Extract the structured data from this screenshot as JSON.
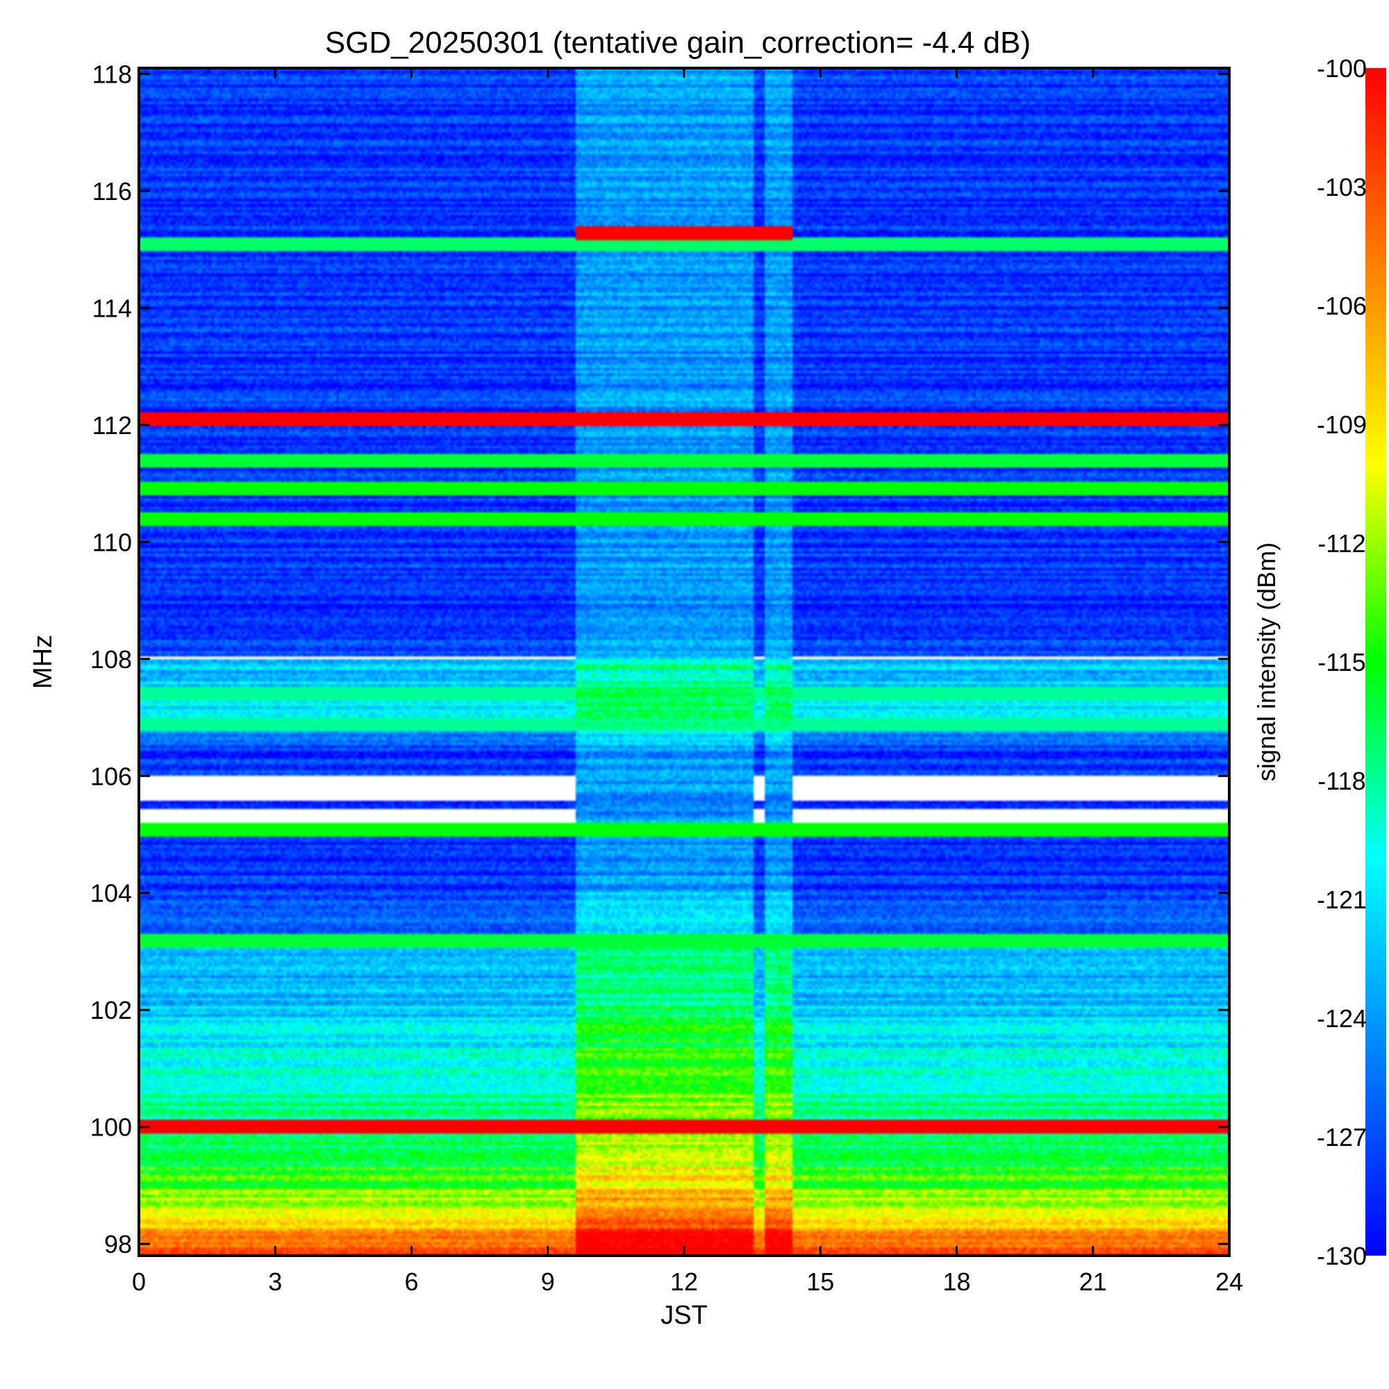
{
  "chart_data": {
    "type": "heatmap",
    "title": "SGD_20250301 (tentative gain_correction= -4.4 dB)",
    "xlabel": "JST",
    "ylabel": "MHz",
    "colorbar_label": "signal intensity (dBm)",
    "xlim": [
      0,
      24
    ],
    "ylim": [
      97.8,
      118.1
    ],
    "clim": [
      -130,
      -100
    ],
    "x_ticks": [
      0,
      3,
      6,
      9,
      12,
      15,
      18,
      21,
      24
    ],
    "x_tick_labels": [
      "0",
      "3",
      "6",
      "9",
      "12",
      "15",
      "18",
      "21",
      "24"
    ],
    "y_ticks": [
      98,
      100,
      102,
      104,
      106,
      108,
      110,
      112,
      114,
      116,
      118
    ],
    "y_tick_labels": [
      "98",
      "100",
      "102",
      "104",
      "106",
      "108",
      "110",
      "112",
      "114",
      "116",
      "118"
    ],
    "colorbar_ticks": [
      -100,
      -103,
      -106,
      -109,
      -112,
      -115,
      -118,
      -121,
      -124,
      -127,
      -130
    ],
    "colorbar_tick_labels": [
      "-100",
      "-103",
      "-106",
      "-109",
      "-112",
      "-115",
      "-118",
      "-121",
      "-124",
      "-127",
      "-130"
    ],
    "colormap": [
      "#0000ff",
      "#0080ff",
      "#00ffff",
      "#00ff00",
      "#ffff00",
      "#ff8000",
      "#ff0000"
    ],
    "background_profile": [
      {
        "mhz": 97.8,
        "dbm": -101
      },
      {
        "mhz": 98.0,
        "dbm": -104
      },
      {
        "mhz": 98.5,
        "dbm": -110
      },
      {
        "mhz": 99.0,
        "dbm": -114
      },
      {
        "mhz": 100.0,
        "dbm": -117
      },
      {
        "mhz": 101.0,
        "dbm": -119
      },
      {
        "mhz": 102.0,
        "dbm": -122
      },
      {
        "mhz": 103.0,
        "dbm": -124
      },
      {
        "mhz": 104.0,
        "dbm": -128
      },
      {
        "mhz": 106.5,
        "dbm": -128
      },
      {
        "mhz": 107.0,
        "dbm": -121
      },
      {
        "mhz": 108.0,
        "dbm": -123
      },
      {
        "mhz": 108.1,
        "dbm": -128
      },
      {
        "mhz": 118.1,
        "dbm": -128
      }
    ],
    "daytime_block": {
      "start": 9.6,
      "end": 14.4,
      "gap_start": 13.55,
      "gap_end": 13.75,
      "enhancement_db": 4
    },
    "strong_stations": [
      {
        "mhz": 100.0,
        "dbm": -100
      },
      {
        "mhz": 112.1,
        "dbm": -100
      },
      {
        "mhz": 115.3,
        "dbm": -100,
        "start": 9.6,
        "end": 14.4
      }
    ],
    "steady_lines": [
      {
        "mhz": 115.1,
        "dbm": -117
      },
      {
        "mhz": 111.4,
        "dbm": -116
      },
      {
        "mhz": 110.9,
        "dbm": -115
      },
      {
        "mhz": 110.4,
        "dbm": -115
      },
      {
        "mhz": 105.1,
        "dbm": -115
      },
      {
        "mhz": 103.2,
        "dbm": -116
      },
      {
        "mhz": 107.4,
        "dbm": -118
      },
      {
        "mhz": 106.9,
        "dbm": -118
      }
    ],
    "white_gaps": [
      {
        "mhz_low": 105.2,
        "mhz_high": 105.45
      },
      {
        "mhz_low": 105.6,
        "mhz_high": 106.0
      },
      {
        "mhz_low": 107.98,
        "mhz_high": 108.04
      }
    ]
  }
}
